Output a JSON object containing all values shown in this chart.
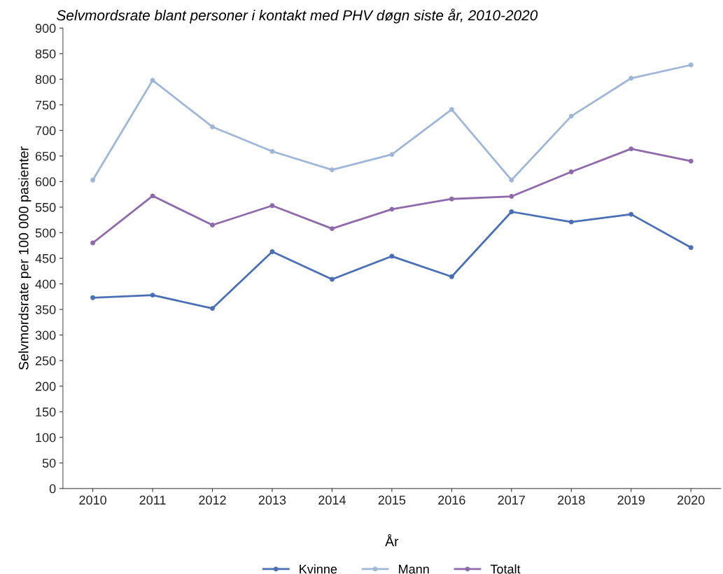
{
  "chart_data": {
    "type": "line",
    "title": "Selvmordsrate blant personer i kontakt med PHV døgn siste år, 2010-2020",
    "xlabel": "År",
    "ylabel": "Selvmordsrate per 100 000 pasienter",
    "categories": [
      "2010",
      "2011",
      "2012",
      "2013",
      "2014",
      "2015",
      "2016",
      "2017",
      "2018",
      "2019",
      "2020"
    ],
    "series": [
      {
        "name": "Kvinne",
        "color": "#4a6fb5",
        "values": [
          373,
          378,
          352,
          463,
          409,
          454,
          414,
          541,
          521,
          536,
          471
        ]
      },
      {
        "name": "Mann",
        "color": "#9fb6d6",
        "values": [
          603,
          798,
          707,
          659,
          623,
          653,
          741,
          603,
          728,
          802,
          828
        ]
      },
      {
        "name": "Totalt",
        "color": "#8e6aab",
        "values": [
          480,
          572,
          515,
          553,
          508,
          546,
          566,
          571,
          619,
          664,
          640
        ]
      }
    ],
    "ylim": [
      0,
      900
    ],
    "yticks": [
      0,
      50,
      100,
      150,
      200,
      250,
      300,
      350,
      400,
      450,
      500,
      550,
      600,
      650,
      700,
      750,
      800,
      850,
      900
    ],
    "grid": false,
    "legend": "bottom",
    "marker": "circle",
    "line_style": "solid"
  }
}
